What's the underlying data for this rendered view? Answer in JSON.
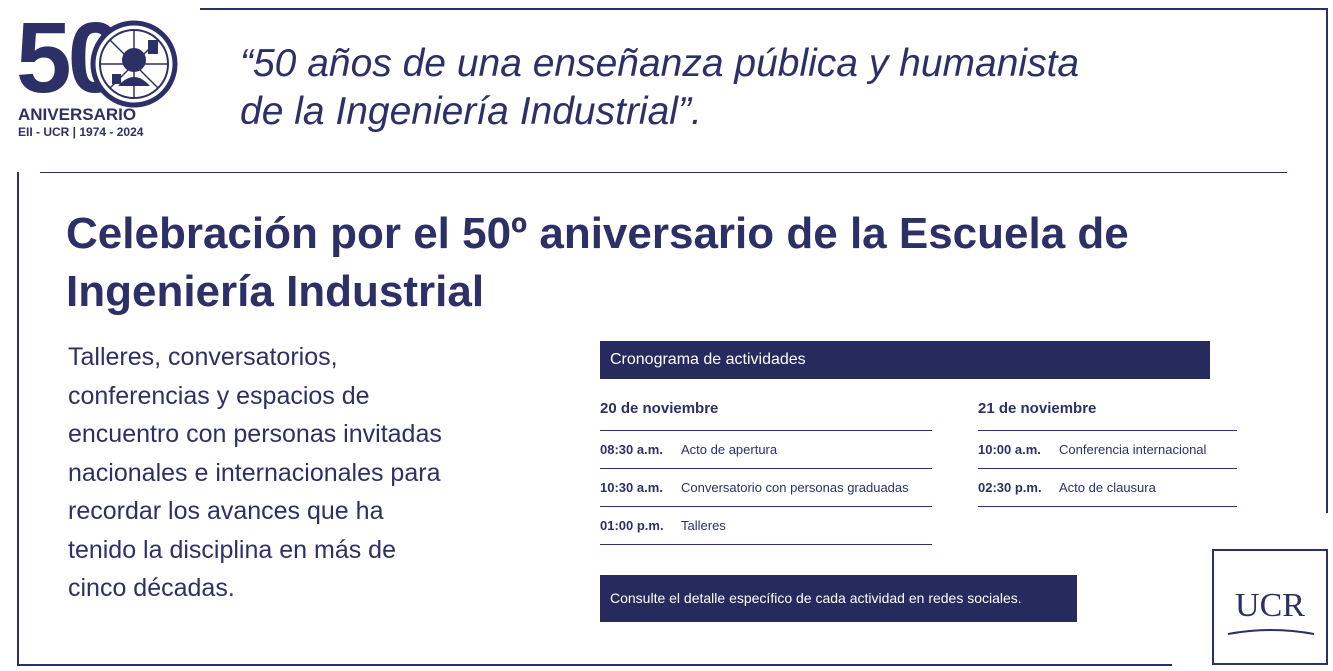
{
  "logo": {
    "number": "50",
    "line1": "ANIVERSARIO",
    "line2": "EII - UCR | 1974 - 2024"
  },
  "quote": {
    "line1": "“50 años de una enseñanza pública y humanista",
    "line2": "de la Ingeniería Industrial”."
  },
  "title": {
    "line1": "Celebración por el 50º aniversario de la Escuela de",
    "line2": "Ingeniería Industrial"
  },
  "intro": {
    "lines": [
      "Talleres, conversatorios,",
      "conferencias y espacios de",
      "encuentro con personas invitadas",
      "nacionales e internacionales para",
      "recordar los avances que ha",
      "tenido la disciplina en más de",
      "cinco décadas."
    ]
  },
  "schedule": {
    "header": "Cronograma de actividades",
    "days": [
      {
        "title": "20 de noviembre",
        "rows": [
          {
            "time": "08:30 a.m.",
            "activity": "Acto de apertura"
          },
          {
            "time": "10:30 a.m.",
            "activity": "Conversatorio con personas graduadas"
          },
          {
            "time": "01:00 p.m.",
            "activity": "Talleres"
          }
        ]
      },
      {
        "title": "21 de noviembre",
        "rows": [
          {
            "time": "10:00 a.m.",
            "activity": "Conferencia internacional"
          },
          {
            "time": "02:30 p.m.",
            "activity": "Acto de clausura"
          }
        ]
      }
    ]
  },
  "footer_note": "Consulte el detalle específico de cada actividad en redes sociales.",
  "ucr": "UCR",
  "colors": {
    "navy": "#2d3066",
    "navy_dark": "#262a5c",
    "background": "#ffffff"
  }
}
